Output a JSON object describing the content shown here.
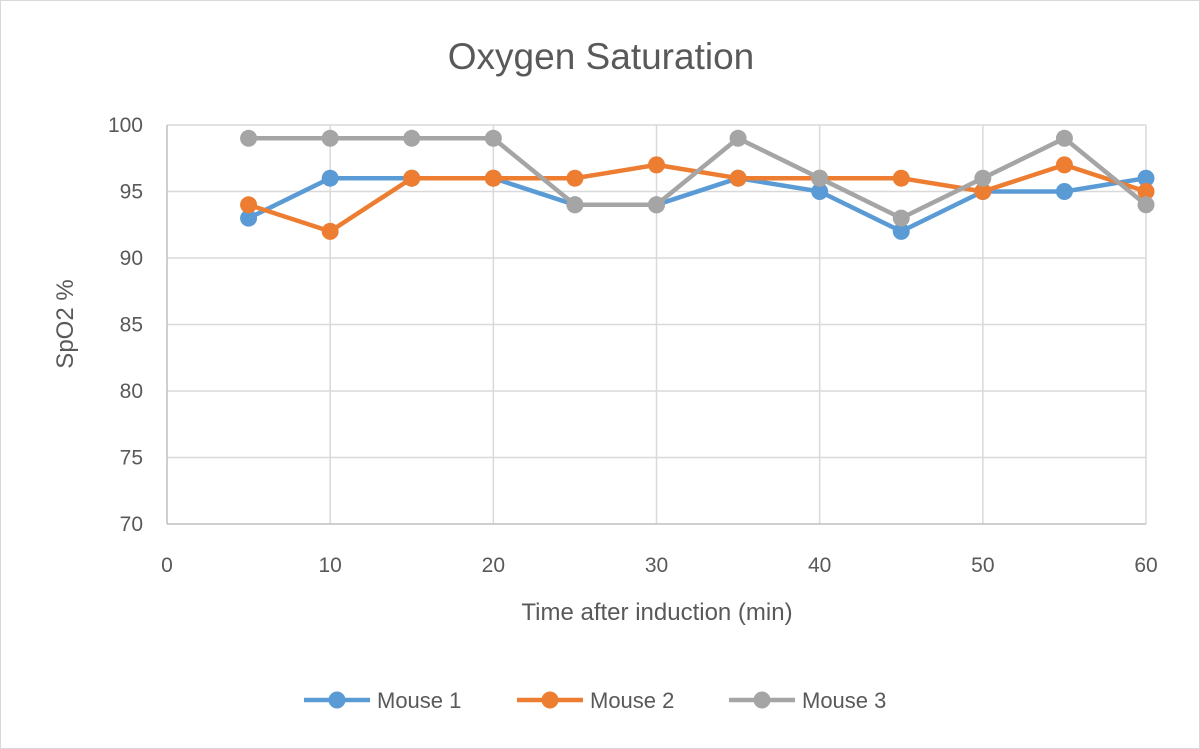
{
  "chart_data": {
    "type": "line",
    "title": "Oxygen Saturation",
    "xlabel": "Time after induction (min)",
    "ylabel": "SpO2 %",
    "xlim": [
      0,
      60
    ],
    "ylim": [
      70,
      100
    ],
    "xticks": [
      0,
      10,
      20,
      30,
      40,
      50,
      60
    ],
    "yticks": [
      70,
      75,
      80,
      85,
      90,
      95,
      100
    ],
    "grid": true,
    "legend_position": "bottom",
    "x": [
      5,
      10,
      15,
      20,
      25,
      30,
      35,
      40,
      45,
      50,
      55,
      60
    ],
    "series": [
      {
        "name": "Mouse 1",
        "color": "#5b9bd5",
        "values": [
          93,
          96,
          96,
          96,
          94,
          94,
          96,
          95,
          92,
          95,
          95,
          96
        ]
      },
      {
        "name": "Mouse 2",
        "color": "#ed7d31",
        "values": [
          94,
          92,
          96,
          96,
          96,
          97,
          96,
          96,
          96,
          95,
          97,
          95
        ]
      },
      {
        "name": "Mouse 3",
        "color": "#a5a5a5",
        "values": [
          99,
          99,
          99,
          99,
          94,
          94,
          99,
          96,
          93,
          96,
          99,
          94
        ]
      }
    ]
  }
}
